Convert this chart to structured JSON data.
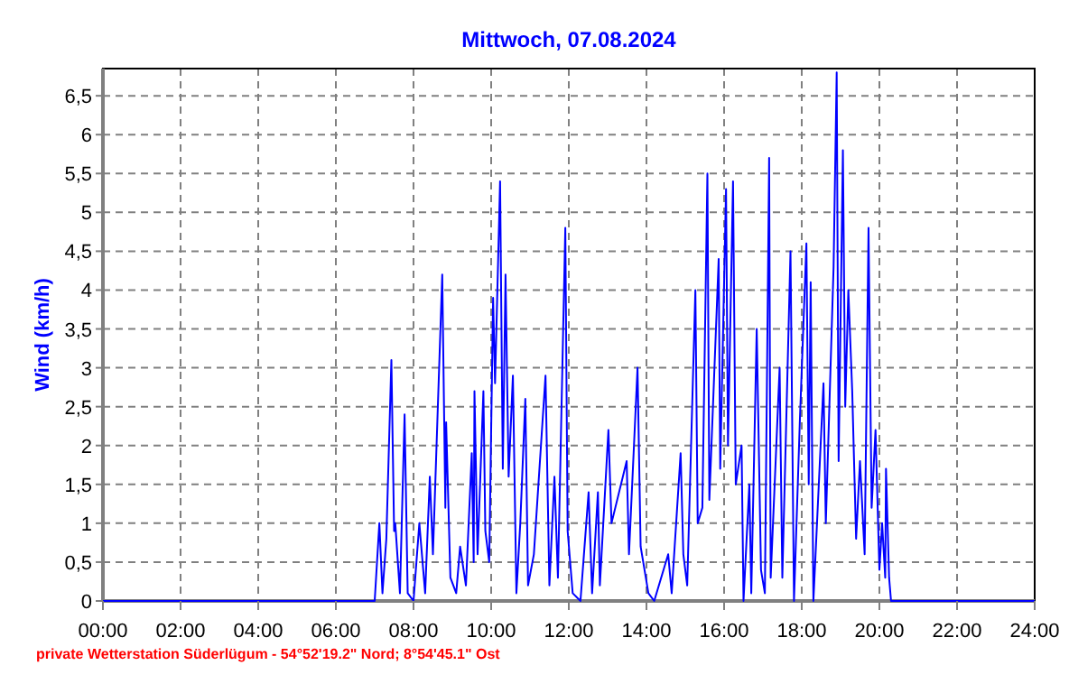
{
  "chart_data": {
    "type": "line",
    "title": "Mittwoch, 07.08.2024",
    "ylabel": "Wind  (km/h)",
    "annotations": [
      "private Wetterstation Süderlügum - 54°52'19.2\" Nord; 8°54'45.1\" Ost"
    ],
    "xlim": [
      0,
      24
    ],
    "ylim": [
      0,
      6.85
    ],
    "xticks": [
      {
        "value": 0,
        "label": "00:00"
      },
      {
        "value": 2,
        "label": "02:00"
      },
      {
        "value": 4,
        "label": "04:00"
      },
      {
        "value": 6,
        "label": "06:00"
      },
      {
        "value": 8,
        "label": "08:00"
      },
      {
        "value": 10,
        "label": "10:00"
      },
      {
        "value": 12,
        "label": "12:00"
      },
      {
        "value": 14,
        "label": "14:00"
      },
      {
        "value": 16,
        "label": "16:00"
      },
      {
        "value": 18,
        "label": "18:00"
      },
      {
        "value": 20,
        "label": "20:00"
      },
      {
        "value": 22,
        "label": "22:00"
      },
      {
        "value": 24,
        "label": "24:00"
      }
    ],
    "yticks": [
      0,
      {
        "value": 0.5,
        "label": "0,5"
      },
      1,
      {
        "value": 1.5,
        "label": "1,5"
      },
      2,
      {
        "value": 2.5,
        "label": "2,5"
      },
      3,
      {
        "value": 3.5,
        "label": "3,5"
      },
      4,
      {
        "value": 4.5,
        "label": "4,5"
      },
      5,
      {
        "value": 5.5,
        "label": "5,5"
      },
      6,
      {
        "value": 6.5,
        "label": "6,5"
      }
    ],
    "grid": true,
    "marker": "none",
    "line_style": "solid",
    "x": [
      0,
      7.0,
      7.12,
      7.2,
      7.3,
      7.43,
      7.5,
      7.53,
      7.65,
      7.77,
      7.85,
      8.0,
      8.15,
      8.3,
      8.42,
      8.5,
      8.74,
      8.82,
      8.84,
      8.95,
      9.1,
      9.2,
      9.35,
      9.5,
      9.55,
      9.57,
      9.65,
      9.8,
      9.85,
      9.95,
      10.05,
      10.1,
      10.23,
      10.3,
      10.37,
      10.45,
      10.56,
      10.65,
      10.75,
      10.88,
      10.95,
      11.1,
      11.4,
      11.5,
      11.63,
      11.72,
      11.91,
      11.97,
      12.1,
      12.3,
      12.51,
      12.6,
      12.75,
      12.8,
      13.02,
      13.1,
      13.49,
      13.55,
      13.77,
      13.85,
      14.05,
      14.2,
      14.56,
      14.65,
      14.88,
      14.95,
      15.05,
      15.26,
      15.32,
      15.44,
      15.57,
      15.62,
      15.86,
      15.9,
      16.05,
      16.1,
      16.23,
      16.3,
      16.45,
      16.5,
      16.65,
      16.7,
      16.84,
      16.95,
      17.05,
      17.16,
      17.2,
      17.43,
      17.5,
      17.71,
      17.8,
      17.95,
      18.12,
      18.18,
      18.23,
      18.3,
      18.56,
      18.62,
      18.82,
      18.9,
      18.95,
      19.06,
      19.12,
      19.2,
      19.3,
      19.4,
      19.5,
      19.62,
      19.72,
      19.8,
      19.9,
      20.0,
      20.07,
      20.15,
      20.17,
      20.25,
      20.3,
      24
    ],
    "series": [
      {
        "color": "#0000ff",
        "values": [
          0,
          0,
          1.0,
          0.1,
          0.8,
          3.1,
          0.9,
          1.0,
          0.1,
          2.4,
          0.1,
          0,
          1.0,
          0.1,
          1.6,
          0.6,
          4.2,
          1.2,
          2.3,
          0.3,
          0.1,
          0.7,
          0.2,
          1.9,
          0.5,
          2.7,
          0.6,
          2.7,
          0.9,
          0.5,
          3.9,
          2.8,
          5.4,
          1.7,
          4.2,
          1.6,
          2.9,
          0.1,
          1.0,
          2.6,
          0.2,
          0.6,
          2.9,
          0.2,
          1.6,
          0.3,
          4.8,
          0.9,
          0.1,
          0,
          1.4,
          0.1,
          1.4,
          0.2,
          2.2,
          1.0,
          1.8,
          0.6,
          3.0,
          0.7,
          0.1,
          0,
          0.6,
          0.1,
          1.9,
          0.6,
          0.2,
          4.0,
          1.0,
          1.2,
          5.5,
          1.3,
          4.4,
          1.7,
          5.3,
          2.0,
          5.4,
          1.5,
          2.0,
          0,
          1.5,
          0.1,
          3.5,
          0.4,
          0.1,
          5.7,
          0.3,
          3.0,
          0.3,
          4.5,
          0,
          2.3,
          4.6,
          1.5,
          4.1,
          0,
          2.8,
          1.0,
          4.3,
          6.8,
          1.8,
          5.8,
          2.5,
          4.0,
          2.7,
          0.8,
          1.8,
          0.6,
          4.8,
          1.2,
          2.2,
          0.4,
          1.0,
          0.3,
          1.7,
          0.3,
          0,
          0
        ]
      }
    ]
  }
}
